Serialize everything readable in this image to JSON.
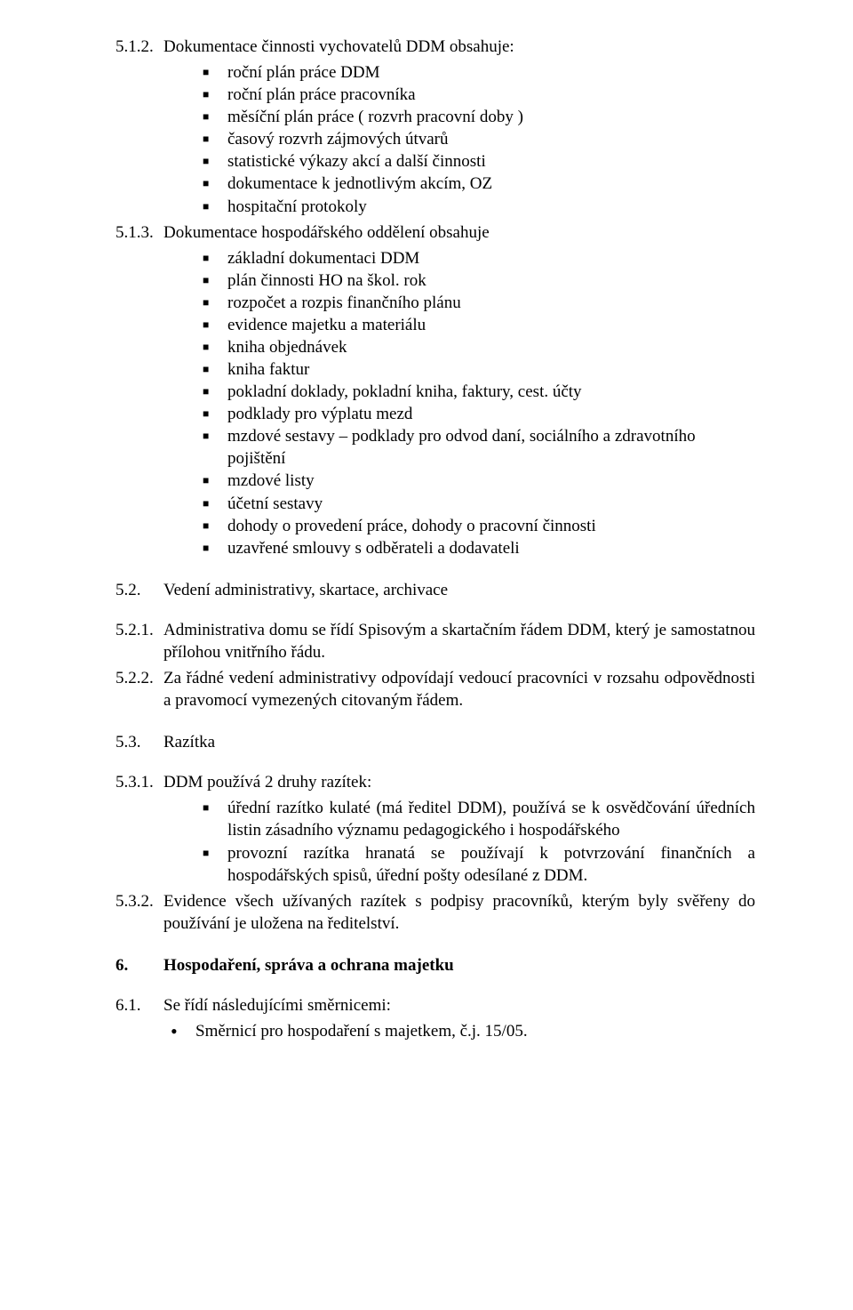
{
  "s512": {
    "num": "5.1.2.",
    "lead": "Dokumentace činnosti vychovatelů DDM obsahuje:",
    "items": [
      "roční plán práce DDM",
      "roční plán práce pracovníka",
      "měsíční plán práce ( rozvrh pracovní doby )",
      "časový rozvrh zájmových útvarů",
      "statistické výkazy akcí a další činnosti",
      "dokumentace k jednotlivým akcím, OZ",
      "hospitační protokoly"
    ]
  },
  "s513": {
    "num": "5.1.3.",
    "lead": "Dokumentace hospodářského oddělení obsahuje",
    "items": [
      "základní dokumentaci DDM",
      "plán činnosti HO na škol. rok",
      "rozpočet a rozpis finančního plánu",
      "evidence majetku a materiálu",
      "kniha objednávek",
      "kniha faktur",
      "pokladní doklady, pokladní kniha, faktury, cest. účty",
      "podklady pro výplatu mezd",
      "mzdové sestavy – podklady pro odvod daní, sociálního a zdravotního pojištění",
      "mzdové listy",
      "účetní sestavy",
      "dohody o provedení práce, dohody o pracovní činnosti",
      "uzavřené smlouvy s odběrateli a dodavateli"
    ]
  },
  "s52": {
    "num": "5.2.",
    "title": "Vedení administrativy, skartace, archivace"
  },
  "s521": {
    "num": "5.2.1.",
    "text": "Administrativa domu se řídí Spisovým a skartačním řádem DDM, který je samostatnou přílohou vnitřního řádu."
  },
  "s522": {
    "num": "5.2.2.",
    "text": "Za řádné vedení administrativy odpovídají vedoucí pracovníci v rozsahu odpovědnosti a pravomocí vymezených citovaným řádem."
  },
  "s53": {
    "num": "5.3.",
    "title": "Razítka"
  },
  "s531": {
    "num": "5.3.1.",
    "lead": "DDM používá 2 druhy razítek:",
    "items": [
      "úřední razítko kulaté (má ředitel DDM), používá se k osvědčování úředních listin zásadního významu pedagogického i hospodářského",
      "provozní razítka hranatá se používají k potvrzování finančních a hospodářských spisů, úřední pošty odesílané z DDM."
    ]
  },
  "s532": {
    "num": "5.3.2.",
    "text": "Evidence všech užívaných razítek s podpisy pracovníků, kterým byly svěřeny do používání je uložena na ředitelství."
  },
  "s6": {
    "num": "6.",
    "title": "Hospodaření, správa a ochrana majetku"
  },
  "s61": {
    "num": "6.1.",
    "lead": "Se řídí následujícími směrnicemi:",
    "items": [
      "Směrnicí pro hospodaření s majetkem, č.j. 15/05."
    ]
  }
}
